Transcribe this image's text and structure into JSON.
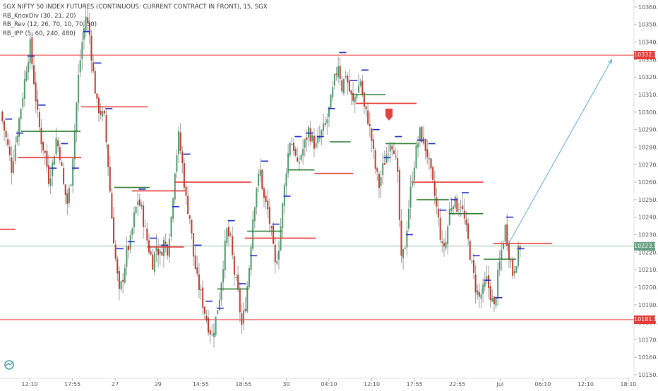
{
  "header": {
    "title": "SGX NIFTY 50 INDEX FUTURES (CONTINUOUS: CURRENT CONTRACT IN FRONT), 15, SGX",
    "indicators": [
      "RB_KnoxDiv (30, 21, 20)",
      "RB_Rev (12, 26, 70, 10, 70, 30)",
      "RB_IPP (5, 60, 240, 480)"
    ]
  },
  "price_tags": [
    {
      "label": "10332.5",
      "value": 10332.5,
      "color": "#e53935"
    },
    {
      "label": "10223.5",
      "value": 10223.5,
      "color": "#66a080"
    },
    {
      "label": "10181.5",
      "value": 10181.5,
      "color": "#e53935"
    }
  ],
  "colors": {
    "up": "#4c9a6a",
    "down": "#c0392b",
    "wick": "#9e9e9e",
    "pivot_red": "#e53935",
    "pivot_green": "#2e7d32",
    "pivot_blue": "#1e2bcc",
    "level_line": "#e53935",
    "current_line": "#8fbfa8",
    "projection": "#5aa9d6",
    "axis_text": "#555555",
    "border": "#e0e0e0"
  },
  "chart_data": {
    "type": "candlestick",
    "title": "SGX NIFTY 50 INDEX FUTURES (CONTINUOUS: CURRENT CONTRACT IN FRONT), 15, SGX",
    "ylim": [
      10148,
      10364
    ],
    "y_ticks": [
      10150.0,
      10160.0,
      10170.0,
      10180.0,
      10190.0,
      10200.0,
      10210.0,
      10220.0,
      10230.0,
      10240.0,
      10250.0,
      10260.0,
      10270.0,
      10280.0,
      10290.0,
      10300.0,
      10310.0,
      10320.0,
      10330.0,
      10340.0,
      10350.0,
      10360.0
    ],
    "x_ticks": [
      "12:10",
      "17:55",
      "27",
      "29",
      "14:55",
      "18:55",
      "30",
      "04:10",
      "12:10",
      "17:55",
      "22:55",
      "Jul",
      "06:10",
      "12:10",
      "18:10"
    ],
    "horizontal_levels": [
      10332.5,
      10181.5
    ],
    "last_price": 10223.5,
    "price_path": [
      10300,
      10290,
      10280,
      10268,
      10282,
      10296,
      10310,
      10326,
      10338,
      10318,
      10298,
      10284,
      10276,
      10262,
      10270,
      10285,
      10276,
      10258,
      10248,
      10262,
      10290,
      10320,
      10340,
      10355,
      10344,
      10322,
      10304,
      10300,
      10296,
      10270,
      10240,
      10216,
      10196,
      10206,
      10220,
      10226,
      10240,
      10250,
      10244,
      10232,
      10222,
      10214,
      10224,
      10218,
      10226,
      10222,
      10240,
      10268,
      10286,
      10270,
      10250,
      10240,
      10218,
      10204,
      10196,
      10186,
      10178,
      10172,
      10182,
      10195,
      10214,
      10232,
      10226,
      10208,
      10196,
      10178,
      10190,
      10212,
      10240,
      10258,
      10266,
      10250,
      10244,
      10230,
      10212,
      10224,
      10246,
      10268,
      10284,
      10280,
      10268,
      10276,
      10282,
      10290,
      10284,
      10280,
      10286,
      10290,
      10296,
      10306,
      10318,
      10328,
      10314,
      10322,
      10312,
      10305,
      10312,
      10318,
      10302,
      10296,
      10284,
      10268,
      10258,
      10268,
      10276,
      10284,
      10280,
      10262,
      10214,
      10224,
      10246,
      10264,
      10278,
      10288,
      10283,
      10276,
      10264,
      10252,
      10238,
      10222,
      10226,
      10244,
      10250,
      10246,
      10248,
      10238,
      10226,
      10212,
      10200,
      10194,
      10198,
      10204,
      10196,
      10188,
      10206,
      10221,
      10234,
      10220,
      10208,
      10216,
      10223.5
    ],
    "pivot_levels": [
      {
        "y": 10233,
        "start": 0.0,
        "end": 0.024,
        "color": "red"
      },
      {
        "y": 10274,
        "start": 0.028,
        "end": 0.128,
        "color": "red"
      },
      {
        "y": 10303,
        "start": 0.128,
        "end": 0.233,
        "color": "red"
      },
      {
        "y": 10255,
        "start": 0.208,
        "end": 0.292,
        "color": "red"
      },
      {
        "y": 10223,
        "start": 0.232,
        "end": 0.29,
        "color": "red"
      },
      {
        "y": 10260,
        "start": 0.276,
        "end": 0.396,
        "color": "red"
      },
      {
        "y": 10228,
        "start": 0.386,
        "end": 0.498,
        "color": "red"
      },
      {
        "y": 10265,
        "start": 0.496,
        "end": 0.557,
        "color": "red"
      },
      {
        "y": 10305,
        "start": 0.561,
        "end": 0.657,
        "color": "red"
      },
      {
        "y": 10260,
        "start": 0.651,
        "end": 0.762,
        "color": "red"
      },
      {
        "y": 10225,
        "start": 0.778,
        "end": 0.871,
        "color": "red"
      },
      {
        "y": 10289,
        "start": 0.033,
        "end": 0.127,
        "color": "green"
      },
      {
        "y": 10257,
        "start": 0.18,
        "end": 0.236,
        "color": "green"
      },
      {
        "y": 10232,
        "start": 0.39,
        "end": 0.445,
        "color": "green"
      },
      {
        "y": 10199,
        "start": 0.343,
        "end": 0.392,
        "color": "green"
      },
      {
        "y": 10267,
        "start": 0.455,
        "end": 0.496,
        "color": "green"
      },
      {
        "y": 10283,
        "start": 0.52,
        "end": 0.553,
        "color": "green"
      },
      {
        "y": 10310,
        "start": 0.555,
        "end": 0.608,
        "color": "green"
      },
      {
        "y": 10282,
        "start": 0.608,
        "end": 0.657,
        "color": "green"
      },
      {
        "y": 10250,
        "start": 0.657,
        "end": 0.708,
        "color": "green"
      },
      {
        "y": 10242,
        "start": 0.708,
        "end": 0.762,
        "color": "green"
      },
      {
        "y": 10216,
        "start": 0.763,
        "end": 0.814,
        "color": "green"
      }
    ],
    "projection": {
      "from": [
        0.8,
        10223.5
      ],
      "to": [
        0.965,
        10330
      ]
    }
  }
}
